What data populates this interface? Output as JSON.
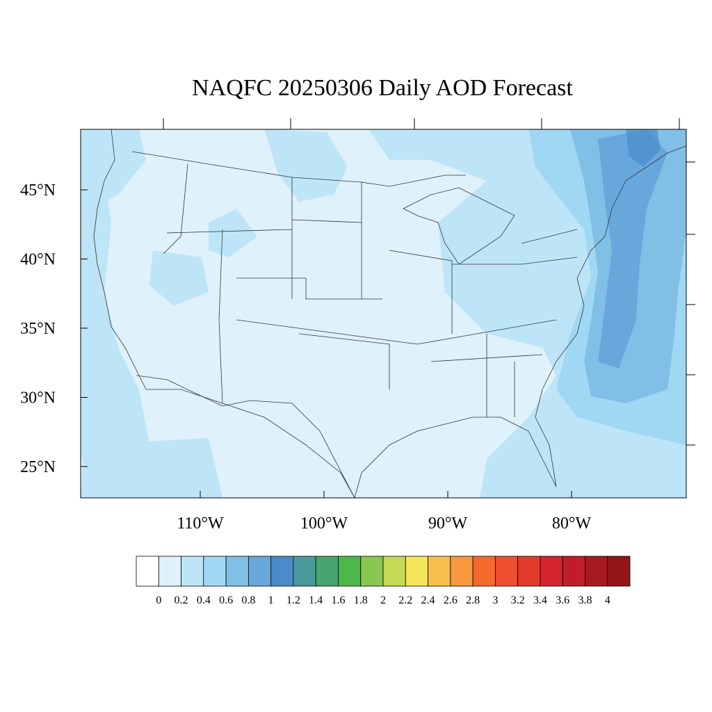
{
  "title": "NAQFC 20250306 Daily AOD Forecast",
  "map": {
    "lat_ticks": [
      {
        "value": 45,
        "label": "45°N"
      },
      {
        "value": 40,
        "label": "40°N"
      },
      {
        "value": 35,
        "label": "35°N"
      },
      {
        "value": 30,
        "label": "30°N"
      },
      {
        "value": 25,
        "label": "25°N"
      }
    ],
    "lon_ticks": [
      {
        "value": -110,
        "label": "110°W"
      },
      {
        "value": -100,
        "label": "100°W"
      },
      {
        "value": -90,
        "label": "90°W"
      },
      {
        "value": -80,
        "label": "80°W"
      }
    ],
    "background_color": "#dff1fb"
  },
  "colorbar": {
    "labels": [
      "0",
      "0.2",
      "0.4",
      "0.6",
      "0.8",
      "1",
      "1.2",
      "1.4",
      "1.6",
      "1.8",
      "2",
      "2.2",
      "2.4",
      "2.6",
      "2.8",
      "3",
      "3.2",
      "3.4",
      "3.6",
      "3.8",
      "4"
    ],
    "colors": [
      "#ffffff",
      "#dff1fb",
      "#bde5f7",
      "#a0d8f3",
      "#82bfe6",
      "#68a7dc",
      "#4a8bc9",
      "#4a9a9b",
      "#48a56f",
      "#4cb849",
      "#8bc64f",
      "#c5d957",
      "#f7e55b",
      "#f8c04a",
      "#f7983f",
      "#f46a2e",
      "#ec5030",
      "#e13b2a",
      "#d52330",
      "#c11d29",
      "#a8191f",
      "#941618"
    ]
  }
}
